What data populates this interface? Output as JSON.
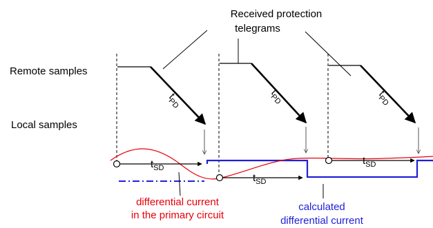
{
  "header": {
    "line1": "Received protection",
    "line2": "telegrams"
  },
  "rows": {
    "remote": "Remote samples",
    "local": "Local samples"
  },
  "arrow_label": {
    "main": "t",
    "sub": "PD"
  },
  "sync_label": {
    "main": "t",
    "sub": "SD"
  },
  "annotations": {
    "primary": {
      "line1": "differential current",
      "line2": "in the primary circuit"
    },
    "calculated": {
      "line1": "calculated",
      "line2": "differential current"
    }
  },
  "colors": {
    "primary_current": "#e8000b",
    "calculated_current": "#1f1fd6",
    "ink": "#000000"
  },
  "icon_names": [
    "sample-point-icon"
  ]
}
